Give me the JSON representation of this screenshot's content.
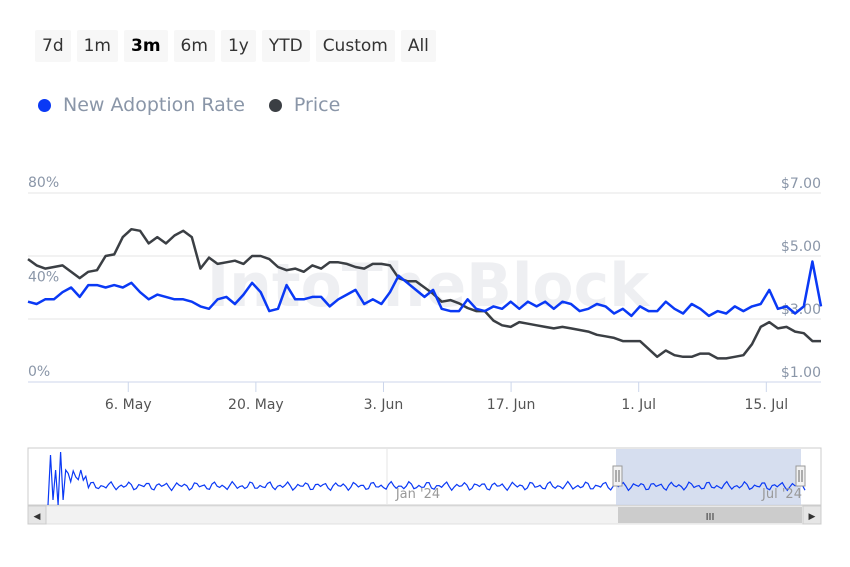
{
  "range_selector": {
    "buttons": [
      "7d",
      "1m",
      "3m",
      "6m",
      "1y",
      "YTD",
      "Custom",
      "All"
    ],
    "active": "3m"
  },
  "legend": {
    "items": [
      {
        "label": "New Adoption Rate",
        "color": "#0a39f5"
      },
      {
        "label": "Price",
        "color": "#3b3f44"
      }
    ]
  },
  "watermark": "IntoTheBlock",
  "navigator": {
    "labels": [
      "Jan '24",
      "Jul '24"
    ],
    "handle_glyph": "III",
    "left_arrow": "◀",
    "right_arrow": "▶",
    "selection_fill": "#ccd6eb"
  },
  "chart_data": {
    "type": "line",
    "title": "",
    "x_start": "2024-04-25",
    "x_end": "2024-07-21",
    "x_ticks": [
      {
        "date": "2024-05-06",
        "label": "6. May"
      },
      {
        "date": "2024-05-20",
        "label": "20. May"
      },
      {
        "date": "2024-06-03",
        "label": "3. Jun"
      },
      {
        "date": "2024-06-17",
        "label": "17. Jun"
      },
      {
        "date": "2024-07-01",
        "label": "1. Jul"
      },
      {
        "date": "2024-07-15",
        "label": "15. Jul"
      }
    ],
    "left_axis": {
      "ylim": [
        0,
        80
      ],
      "ticks": [
        "0%",
        "40%",
        "80%"
      ]
    },
    "right_axis": {
      "ylim": [
        1,
        7
      ],
      "ticks": [
        "$1.00",
        "$3.00",
        "$5.00",
        "$7.00"
      ]
    },
    "grid": true,
    "series": [
      {
        "name": "New Adoption Rate",
        "axis": "left",
        "unit": "%",
        "color": "#0a39f5",
        "values": [
          34,
          33,
          35,
          35,
          38,
          40,
          36,
          41,
          41,
          40,
          41,
          40,
          42,
          38,
          35,
          37,
          36,
          35,
          35,
          34,
          32,
          31,
          35,
          36,
          33,
          37,
          42,
          38,
          30,
          31,
          41,
          35,
          35,
          36,
          36,
          32,
          35,
          37,
          39,
          33,
          35,
          33,
          38,
          45,
          42,
          39,
          36,
          39,
          31,
          30,
          30,
          35,
          31,
          30,
          32,
          31,
          34,
          31,
          34,
          32,
          34,
          31,
          34,
          33,
          30,
          31,
          33,
          32,
          29,
          31,
          28,
          32,
          30,
          30,
          34,
          31,
          29,
          33,
          31,
          28,
          30,
          29,
          32,
          30,
          32,
          33,
          39,
          31,
          32,
          29,
          32,
          51,
          32
        ]
      },
      {
        "name": "Price",
        "axis": "right",
        "values": [
          4.9,
          4.7,
          4.6,
          4.65,
          4.7,
          4.5,
          4.3,
          4.5,
          4.55,
          5.0,
          5.05,
          5.6,
          5.85,
          5.8,
          5.4,
          5.6,
          5.4,
          5.65,
          5.8,
          5.6,
          4.6,
          4.95,
          4.75,
          4.8,
          4.85,
          4.75,
          5.0,
          5.0,
          4.9,
          4.65,
          4.55,
          4.6,
          4.5,
          4.7,
          4.6,
          4.8,
          4.8,
          4.75,
          4.65,
          4.6,
          4.75,
          4.75,
          4.7,
          4.3,
          4.2,
          4.2,
          4.0,
          3.8,
          3.55,
          3.6,
          3.5,
          3.35,
          3.25,
          3.25,
          2.95,
          2.8,
          2.75,
          2.9,
          2.85,
          2.8,
          2.75,
          2.7,
          2.75,
          2.7,
          2.65,
          2.6,
          2.5,
          2.45,
          2.4,
          2.3,
          2.3,
          2.3,
          2.05,
          1.8,
          2.0,
          1.85,
          1.8,
          1.8,
          1.9,
          1.9,
          1.75,
          1.75,
          1.8,
          1.85,
          2.2,
          2.75,
          2.9,
          2.7,
          2.75,
          2.6,
          2.55,
          2.3,
          2.3
        ]
      }
    ]
  }
}
